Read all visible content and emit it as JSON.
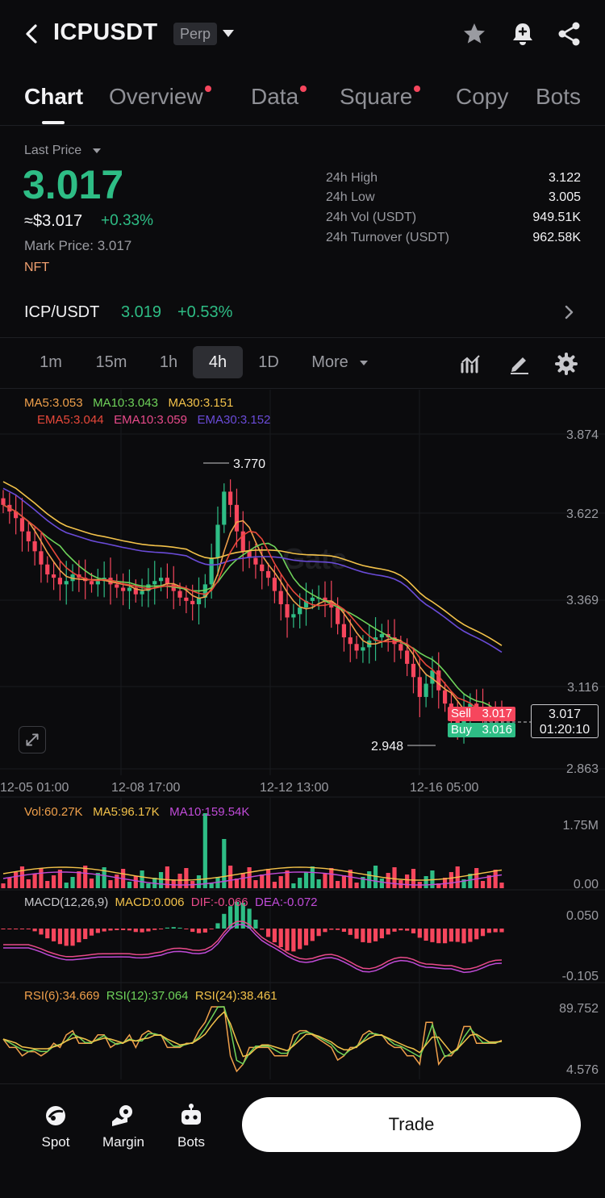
{
  "header": {
    "symbol": "ICPUSDT",
    "badge": "Perp",
    "icons": [
      "back-icon",
      "star-icon",
      "bell-add-icon",
      "share-icon"
    ]
  },
  "tabs": [
    {
      "label": "Chart",
      "active": true,
      "dot": false
    },
    {
      "label": "Overview",
      "active": false,
      "dot": true
    },
    {
      "label": "Data",
      "active": false,
      "dot": true
    },
    {
      "label": "Square",
      "active": false,
      "dot": true
    },
    {
      "label": "Copy",
      "active": false,
      "dot": false
    },
    {
      "label": "Bots",
      "active": false,
      "dot": false
    }
  ],
  "price": {
    "label": "Last Price",
    "last": "3.017",
    "usd": "≈$3.017",
    "change": "+0.33%",
    "mark_label": "Mark Price:",
    "mark_value": "3.017",
    "tag": "NFT"
  },
  "stats": [
    {
      "label": "24h High",
      "value": "3.122"
    },
    {
      "label": "24h Low",
      "value": "3.005"
    },
    {
      "label": "24h Vol (USDT)",
      "value": "949.51K"
    },
    {
      "label": "24h Turnover (USDT)",
      "value": "962.58K"
    }
  ],
  "pair": {
    "name": "ICP/USDT",
    "price": "3.019",
    "change": "+0.53%"
  },
  "intervals": [
    "1m",
    "15m",
    "1h",
    "4h",
    "1D",
    "More"
  ],
  "active_interval": "4h",
  "indicators": {
    "ma": [
      "MA5:3.053",
      "MA10:3.043",
      "MA30:3.151"
    ],
    "ema": [
      "EMA5:3.044",
      "EMA10:3.059",
      "EMA30:3.152"
    ],
    "vol": [
      "Vol:60.27K",
      "MA5:96.17K",
      "MA10:159.54K"
    ],
    "macd": [
      "MACD(12,26,9)",
      "MACD:0.006",
      "DIF:-0.066",
      "DEA:-0.072"
    ],
    "rsi": [
      "RSI(6):34.669",
      "RSI(12):37.064",
      "RSI(24):38.461"
    ]
  },
  "chart_labels": {
    "y_ticks": [
      "3.874",
      "3.622",
      "3.369",
      "3.116",
      "2.863"
    ],
    "x_ticks": [
      "12-05 01:00",
      "12-08 17:00",
      "12-12 13:00",
      "12-16 05:00"
    ],
    "high_marker": "3.770",
    "low_marker": "2.948",
    "sell_label": "Sell",
    "sell_value": "3.017",
    "buy_label": "Buy",
    "buy_value": "3.016",
    "current_price": "3.017",
    "countdown": "01:20:10",
    "vol_ticks": [
      "1.75M",
      "0.00"
    ],
    "macd_ticks": [
      "0.050",
      "-0.105"
    ],
    "rsi_ticks": [
      "89.752",
      "4.576"
    ],
    "watermark": "Gate"
  },
  "colors": {
    "up": "#2ebd85",
    "down": "#f6465d",
    "ma5": "#f0a04b",
    "ma10": "#6fd35a",
    "ma30": "#f3c24a",
    "ema5": "#e8483a",
    "ema10": "#e84a8a",
    "ema30": "#6a4bd8"
  },
  "chart_data": {
    "type": "candlestick",
    "y_range": [
      2.863,
      3.874
    ],
    "closes": [
      3.66,
      3.64,
      3.62,
      3.58,
      3.55,
      3.52,
      3.48,
      3.45,
      3.44,
      3.42,
      3.43,
      3.45,
      3.44,
      3.43,
      3.42,
      3.43,
      3.44,
      3.42,
      3.41,
      3.4,
      3.41,
      3.39,
      3.4,
      3.42,
      3.43,
      3.44,
      3.42,
      3.4,
      3.38,
      3.37,
      3.36,
      3.38,
      3.42,
      3.5,
      3.6,
      3.7,
      3.66,
      3.58,
      3.52,
      3.5,
      3.48,
      3.46,
      3.44,
      3.4,
      3.36,
      3.32,
      3.33,
      3.35,
      3.37,
      3.38,
      3.38,
      3.37,
      3.35,
      3.3,
      3.26,
      3.24,
      3.22,
      3.23,
      3.25,
      3.26,
      3.27,
      3.26,
      3.24,
      3.22,
      3.18,
      3.14,
      3.08,
      3.12,
      3.16,
      3.1,
      3.06,
      3.02,
      3.0,
      3.03,
      3.06,
      3.05,
      3.04,
      3.03,
      3.02,
      3.017
    ],
    "max_label": "3.770",
    "min_label": "2.948"
  },
  "bottom_nav": [
    {
      "label": "Spot",
      "icon": "spot-icon"
    },
    {
      "label": "Margin",
      "icon": "margin-icon"
    },
    {
      "label": "Bots",
      "icon": "bots-icon"
    }
  ],
  "trade_button": "Trade"
}
